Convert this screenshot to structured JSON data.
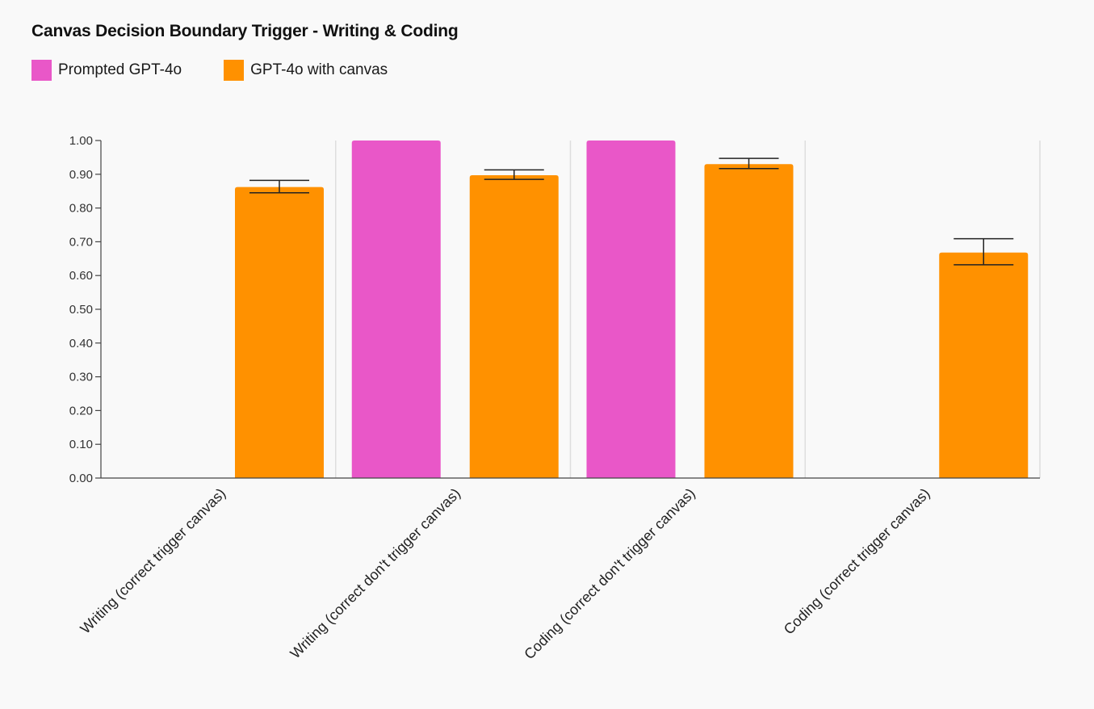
{
  "chart_data": {
    "type": "bar",
    "title": "Canvas Decision Boundary Trigger - Writing & Coding",
    "xlabel": "",
    "ylabel": "",
    "ylim": [
      0,
      1
    ],
    "yticks": [
      "0.00",
      "0.10",
      "0.20",
      "0.30",
      "0.40",
      "0.50",
      "0.60",
      "0.70",
      "0.80",
      "0.90",
      "1.00"
    ],
    "categories": [
      "Writing (correct trigger canvas)",
      "Writing (correct don't trigger canvas)",
      "Coding (correct don't trigger canvas)",
      "Coding (correct trigger canvas)"
    ],
    "series": [
      {
        "name": "Prompted GPT-4o",
        "color": "#e957c8",
        "values": [
          0,
          1.0,
          1.0,
          0
        ],
        "error": [
          null,
          null,
          null,
          null
        ]
      },
      {
        "name": "GPT-4o with canvas",
        "color": "#ff9100",
        "values": [
          0.862,
          0.897,
          0.93,
          0.668
        ],
        "error": [
          [
            0.845,
            0.882
          ],
          [
            0.885,
            0.913
          ],
          [
            0.917,
            0.947
          ],
          [
            0.632,
            0.709
          ]
        ]
      }
    ],
    "legend": "top-left",
    "grid": "vertical-category-separators"
  }
}
